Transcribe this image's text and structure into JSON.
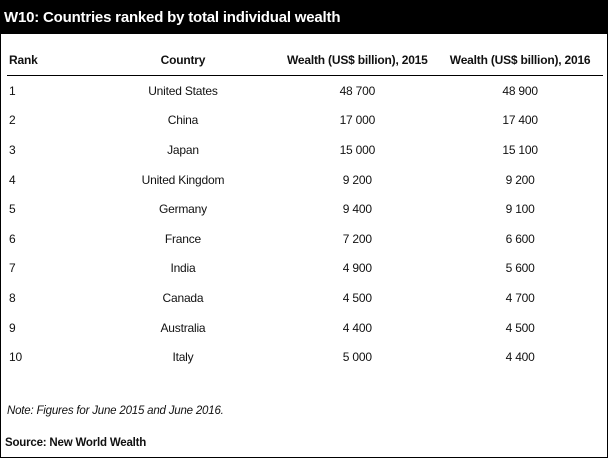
{
  "title": "W10: Countries ranked by total individual wealth",
  "chart_data": {
    "type": "table",
    "columns": [
      "Rank",
      "Country",
      "Wealth (US$ billion), 2015",
      "Wealth (US$ billion), 2016"
    ],
    "rows": [
      [
        "1",
        "United States",
        "48 700",
        "48 900"
      ],
      [
        "2",
        "China",
        "17 000",
        "17 400"
      ],
      [
        "3",
        "Japan",
        "15 000",
        "15 100"
      ],
      [
        "4",
        "United Kingdom",
        "9 200",
        "9 200"
      ],
      [
        "5",
        "Germany",
        "9 400",
        "9 100"
      ],
      [
        "6",
        "France",
        "7 200",
        "6 600"
      ],
      [
        "7",
        "India",
        "4 900",
        "5 600"
      ],
      [
        "8",
        "Canada",
        "4 500",
        "4 700"
      ],
      [
        "9",
        "Australia",
        "4 400",
        "4 500"
      ],
      [
        "10",
        "Italy",
        "5 000",
        "4 400"
      ]
    ]
  },
  "note": "Note: Figures for June 2015 and June 2016.",
  "source": "Source: New World Wealth"
}
